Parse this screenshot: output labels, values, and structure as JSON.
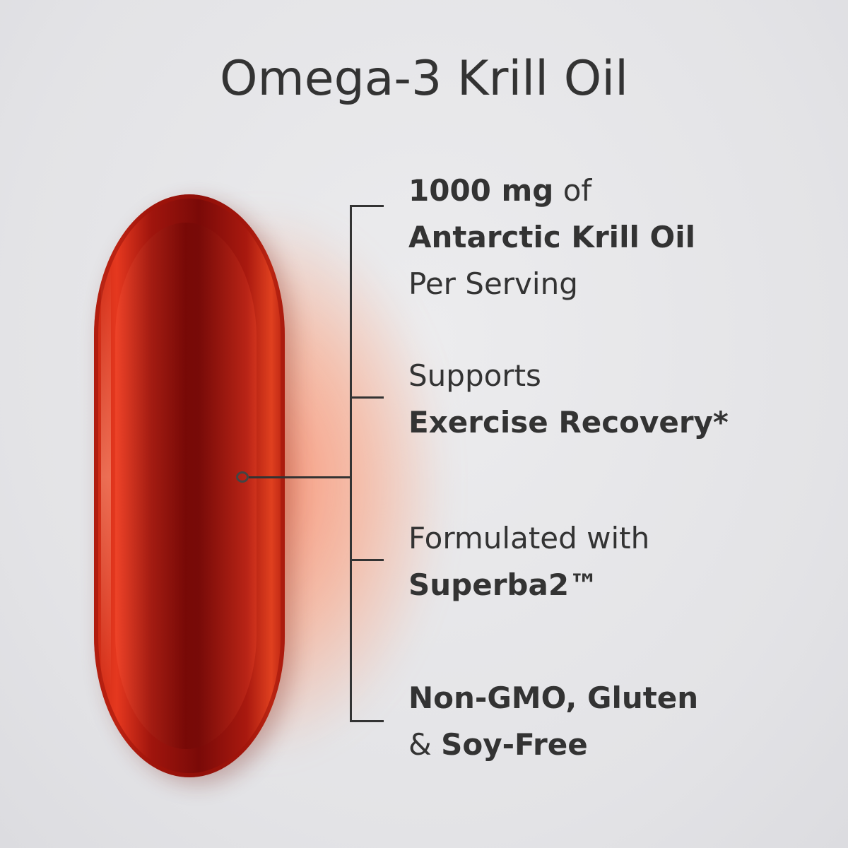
{
  "title": "Omega-3 Krill Oil",
  "features": [
    {
      "line1_bold": "1000 mg",
      "line1_rest": " of",
      "line2_bold": "Antarctic Krill Oil",
      "line3": "Per Serving"
    },
    {
      "line1": "Supports",
      "line2_bold": "Exercise Recovery*"
    },
    {
      "line1": "Formulated with",
      "line2_bold": "Superba2™"
    },
    {
      "line1_bold": "Non-GMO, Gluten",
      "line2_pre": "& ",
      "line2_bold": "Soy-Free"
    }
  ],
  "colors": {
    "capsule": "#a0150d",
    "text": "#333333",
    "background": "#e6e6e9"
  }
}
